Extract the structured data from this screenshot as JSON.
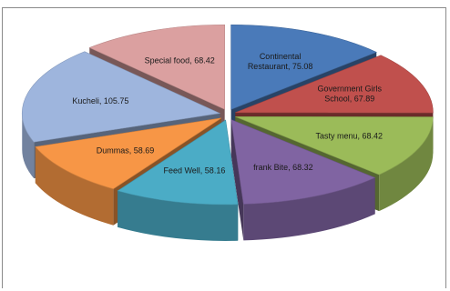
{
  "chart_data": {
    "type": "pie",
    "style": "3d-exploded",
    "title": "",
    "legend": "none",
    "slices": [
      {
        "label": "Continental Restaurant",
        "value": 75.08,
        "color": "#4a7ab9",
        "text": [
          "Continental",
          "Restaurant, 75.08"
        ]
      },
      {
        "label": "Government Girls School",
        "value": 67.89,
        "color": "#c0504d",
        "text": [
          "Government Girls",
          "School, 67.89"
        ]
      },
      {
        "label": "Tasty menu",
        "value": 68.42,
        "color": "#9bbb59",
        "text": [
          "Tasty menu, 68.42"
        ]
      },
      {
        "label": "frank Bite",
        "value": 68.32,
        "color": "#8064a2",
        "text": [
          "frank Bite, 68.32"
        ]
      },
      {
        "label": "Feed Well",
        "value": 58.16,
        "color": "#4bacc6",
        "text": [
          "Feed Well, 58.16"
        ]
      },
      {
        "label": "Dummas",
        "value": 58.69,
        "color": "#f79646",
        "text": [
          "Dummas, 58.69"
        ]
      },
      {
        "label": "Kucheli",
        "value": 105.75,
        "color": "#9eb5dd",
        "text": [
          "Kucheli, 105.75"
        ]
      },
      {
        "label": "Special food",
        "value": 68.42,
        "color": "#dba0a0",
        "text": [
          "Special food, 68.42"
        ]
      }
    ]
  }
}
